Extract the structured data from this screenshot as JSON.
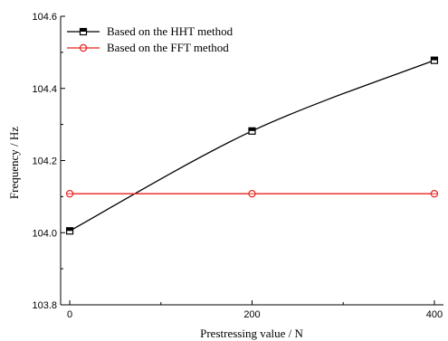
{
  "chart_data": {
    "type": "line",
    "xlabel": "Prestressing value / N",
    "ylabel": "Frequency / Hz",
    "xlim": [
      -10,
      410
    ],
    "ylim": [
      103.8,
      104.6
    ],
    "x_ticks": [
      0,
      200,
      400
    ],
    "x_minor_ticks": [
      100,
      300
    ],
    "y_ticks": [
      "103.8",
      "104.0",
      "104.2",
      "104.4",
      "104.6"
    ],
    "y_tick_values": [
      103.8,
      104.0,
      104.2,
      104.4,
      104.6
    ],
    "grid": false,
    "legend_position": "top-left",
    "series": [
      {
        "name": "Based on the HHT method",
        "marker": "square",
        "color": "#000000",
        "x": [
          0,
          200,
          400
        ],
        "y": [
          104.005,
          104.282,
          104.478
        ]
      },
      {
        "name": "Based on the FFT method",
        "marker": "circle",
        "color": "#e8231d",
        "x": [
          0,
          200,
          400
        ],
        "y": [
          104.108,
          104.108,
          104.108
        ]
      }
    ]
  }
}
